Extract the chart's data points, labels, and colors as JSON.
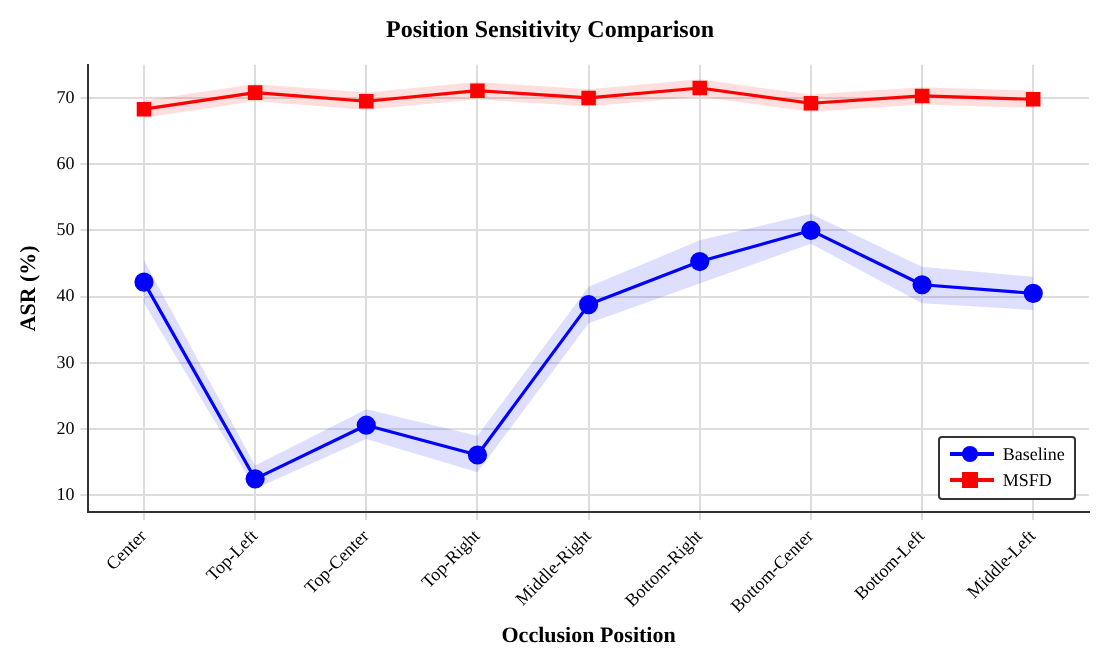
{
  "chart_data": {
    "type": "line",
    "title": "Position Sensitivity Comparison",
    "xlabel": "Occlusion Position",
    "ylabel": "ASR (%)",
    "categories": [
      "Center",
      "Top-Left",
      "Top-Center",
      "Top-Right",
      "Middle-Right",
      "Bottom-Right",
      "Bottom-Center",
      "Bottom-Left",
      "Middle-Left"
    ],
    "series": [
      {
        "name": "Baseline",
        "color": "#0000ff",
        "marker": "circle",
        "values": [
          42.2,
          12.5,
          20.6,
          16.1,
          38.8,
          45.3,
          50.0,
          41.8,
          40.5
        ],
        "lower": [
          39,
          11,
          18.5,
          13.5,
          36,
          42,
          48,
          39,
          38
        ],
        "upper": [
          45.5,
          14.5,
          23,
          19,
          41.5,
          48.5,
          52.5,
          44.5,
          43
        ]
      },
      {
        "name": "MSFD",
        "color": "#ff0000",
        "marker": "square",
        "values": [
          68.3,
          70.8,
          69.5,
          71.1,
          70.0,
          71.5,
          69.2,
          70.3,
          69.8
        ],
        "lower": [
          67,
          69.5,
          68.2,
          69.8,
          68.7,
          70.2,
          67.9,
          69,
          68.5
        ],
        "upper": [
          69.6,
          72.1,
          70.8,
          72.4,
          71.3,
          72.8,
          70.5,
          71.6,
          71.1
        ]
      }
    ],
    "ylim": [
      7.5,
      75
    ],
    "yticks": [
      10,
      20,
      30,
      40,
      50,
      60,
      70
    ],
    "grid": true,
    "legend": "bottom right",
    "line_style": "solid"
  }
}
